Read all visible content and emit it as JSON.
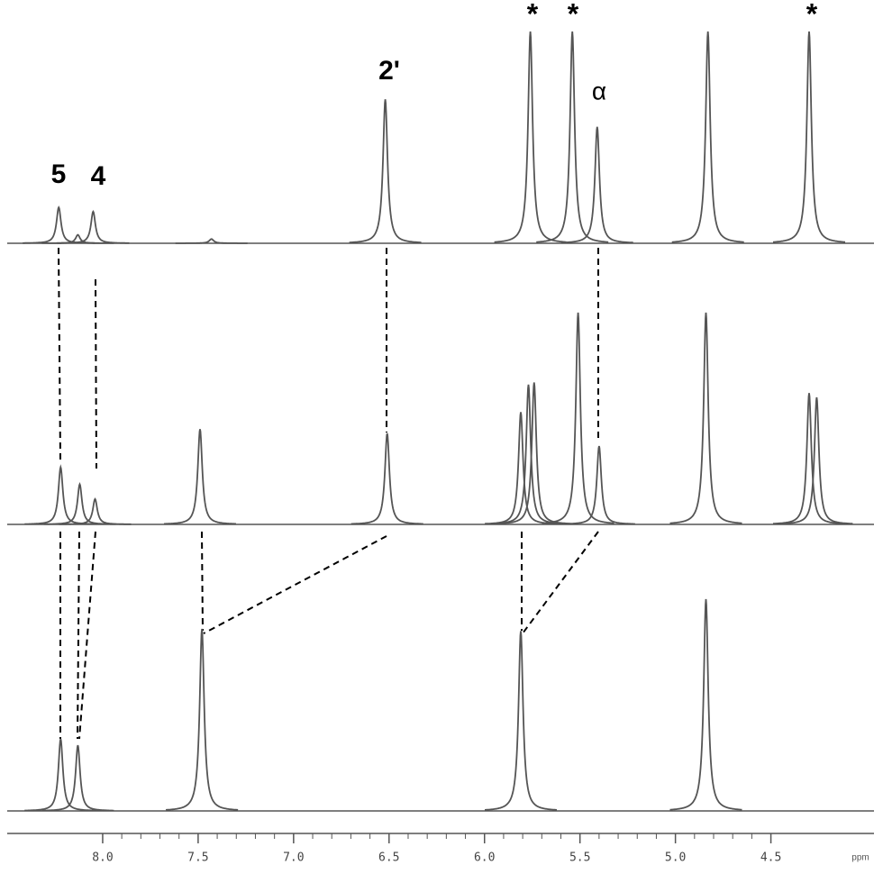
{
  "chart_data": {
    "type": "nmr",
    "xlim": [
      8.5,
      3.96
    ],
    "xticks": [
      {
        "value": 8.0,
        "label": "8.0"
      },
      {
        "value": 7.5,
        "label": "7.5"
      },
      {
        "value": 7.0,
        "label": "7.0"
      },
      {
        "value": 6.5,
        "label": "6.5"
      },
      {
        "value": 6.0,
        "label": "6.0"
      },
      {
        "value": 5.5,
        "label": "5.5"
      },
      {
        "value": 5.0,
        "label": "5.0"
      },
      {
        "value": 4.5,
        "label": "4.5"
      }
    ],
    "x_label": "ppm",
    "series": [
      {
        "color": "#555555",
        "x": [
          8.23,
          8.13,
          8.05,
          7.43,
          6.52,
          5.76,
          5.54,
          5.41,
          4.83,
          4.3
        ],
        "values": [
          17,
          4,
          15,
          2,
          68,
          100,
          100,
          55,
          100,
          100
        ]
      },
      {
        "color": "#555555",
        "x": [
          8.22,
          8.12,
          8.04,
          7.49,
          6.51,
          5.81,
          5.77,
          5.74,
          5.51,
          5.4,
          4.84,
          4.3,
          4.26
        ],
        "values": [
          27,
          19,
          12,
          45,
          43,
          53,
          66,
          67,
          100,
          37,
          100,
          62,
          60
        ]
      },
      {
        "color": "#555555",
        "x": [
          8.22,
          8.13,
          7.48,
          5.81,
          4.84
        ],
        "values": [
          34,
          31,
          86,
          85,
          100
        ]
      }
    ],
    "annotations": [
      "5",
      "4",
      "2'",
      "*",
      "*",
      "α",
      "*"
    ]
  }
}
